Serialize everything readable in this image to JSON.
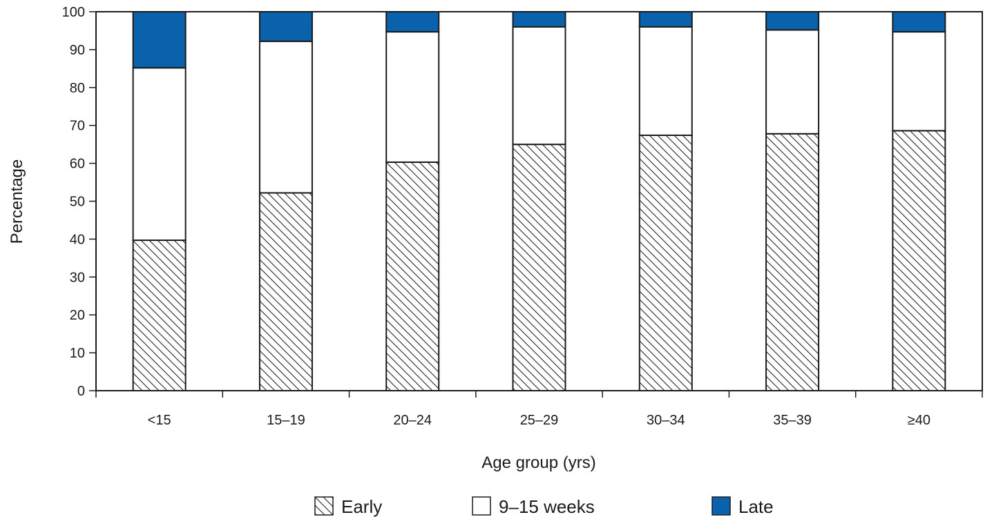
{
  "chart_data": {
    "type": "bar",
    "stacked": true,
    "categories": [
      "<15",
      "15–19",
      "20–24",
      "25–29",
      "30–34",
      "35–39",
      "≥40"
    ],
    "series": [
      {
        "name": "Early",
        "values": [
          39.7,
          52.2,
          60.3,
          65.0,
          67.4,
          67.8,
          68.6
        ],
        "pattern": "diagonal-hatch"
      },
      {
        "name": "9–15 weeks",
        "values": [
          45.5,
          40.0,
          34.4,
          31.0,
          28.6,
          27.4,
          26.1
        ],
        "color": "#ffffff"
      },
      {
        "name": "Late",
        "values": [
          14.8,
          7.8,
          5.3,
          4.0,
          4.0,
          4.8,
          5.3
        ],
        "color": "#0a62ad"
      }
    ],
    "xlabel": "Age group (yrs)",
    "ylabel": "Percentage",
    "ylim": [
      0,
      100
    ],
    "yticks": [
      0,
      10,
      20,
      30,
      40,
      50,
      60,
      70,
      80,
      90,
      100
    ],
    "grid": false,
    "legend_position": "bottom"
  }
}
